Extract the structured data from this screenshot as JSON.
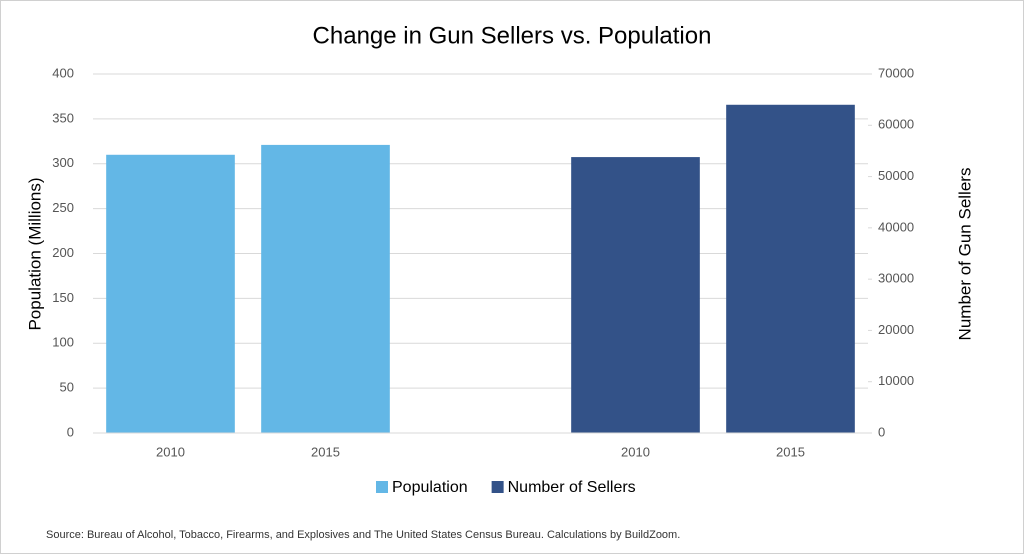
{
  "chart_data": {
    "type": "bar",
    "title": "Change in Gun Sellers vs. Population",
    "categories": [
      "2010",
      "2015",
      null,
      "2010",
      "2015"
    ],
    "series": [
      {
        "name": "Population",
        "color": "#63b7e6",
        "values": [
          310,
          321,
          null,
          null,
          null
        ]
      },
      {
        "name": "Number of Sellers",
        "color": "#335288",
        "axis": "y2",
        "values": [
          null,
          null,
          null,
          53800,
          64000
        ]
      }
    ],
    "y_label": "Population (Millions)",
    "y2_label": "Number of Gun Sellers",
    "ylim": [
      0,
      400
    ],
    "yticks": [
      0,
      50,
      100,
      150,
      200,
      250,
      300,
      350,
      400
    ],
    "y2lim": [
      0,
      70000
    ],
    "y2ticks": [
      0,
      10000,
      20000,
      30000,
      40000,
      50000,
      60000,
      70000
    ],
    "grid": true,
    "legend": "bottom",
    "source": "Source: Bureau of Alcohol, Tobacco, Firearms, and Explosives and The United States Census Bureau.  Calculations by BuildZoom."
  }
}
